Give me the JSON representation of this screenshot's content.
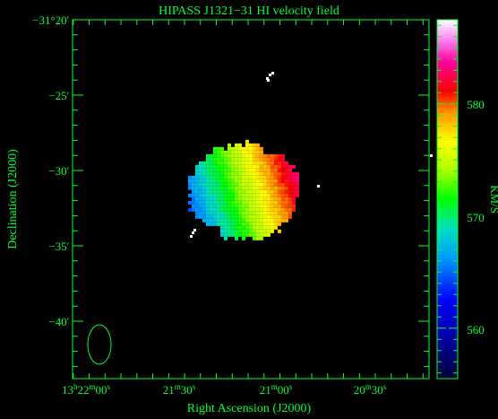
{
  "chart_data": {
    "type": "heatmap",
    "title": "HIPASS J1321−31   HI velocity field",
    "xlabel": "Right Ascension (J2000)",
    "ylabel": "Declination (J2000)",
    "colorbar_label": "KM/S",
    "x_ticks": [
      {
        "label_parts": [
          "13",
          "h",
          "22",
          "m",
          "00",
          "s"
        ],
        "ra_sec": 0
      },
      {
        "label_parts": [
          "",
          "",
          "21",
          "m",
          "30",
          "s"
        ],
        "ra_sec": 30
      },
      {
        "label_parts": [
          "",
          "",
          "21",
          "m",
          "00",
          "s"
        ],
        "ra_sec": 60
      },
      {
        "label_parts": [
          "",
          "",
          "20",
          "m",
          "30",
          "s"
        ],
        "ra_sec": 90
      }
    ],
    "y_ticks": [
      {
        "label": "−31°20'",
        "dec_arcmin": -20
      },
      {
        "label": "−25'",
        "dec_arcmin": -25
      },
      {
        "label": "−30'",
        "dec_arcmin": -30
      },
      {
        "label": "−35'",
        "dec_arcmin": -35
      },
      {
        "label": "−40'",
        "dec_arcmin": -40
      }
    ],
    "colorbar_ticks": [
      {
        "label": "560",
        "value": 560
      },
      {
        "label": "570",
        "value": 570
      },
      {
        "label": "580",
        "value": 580
      }
    ],
    "colorbar_range": [
      555.5,
      587.5
    ],
    "grid": false,
    "galaxy": {
      "center_ra_sec": 49,
      "center_dec_arcmin": -31.3,
      "velocity_gradient": "east-to-west increasing",
      "velocity_range_kms": [
        564,
        584
      ]
    },
    "beam_ellipse": {
      "center_ra_sec": 6,
      "center_dec_arcmin": -41.2
    }
  }
}
